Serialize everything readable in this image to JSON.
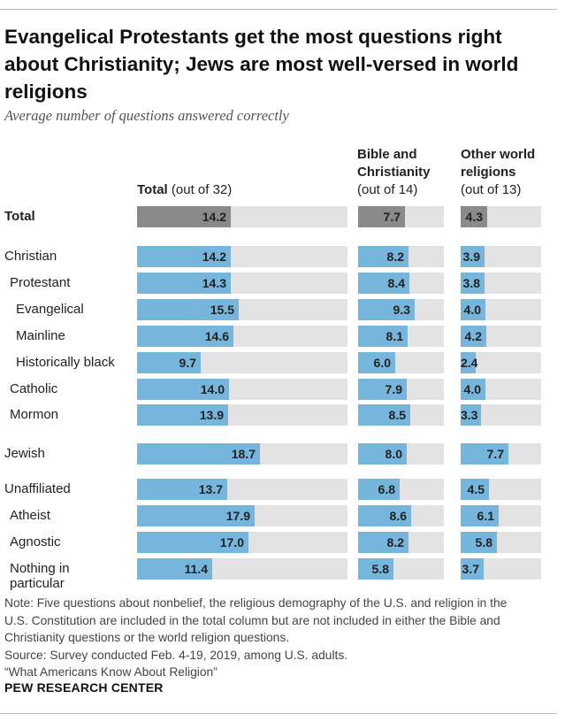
{
  "title": "Evangelical Protestants get the most questions right about Christianity; Jews are most well-versed in world religions",
  "subtitle": "Average number of questions answered correctly",
  "columns": [
    {
      "heading": "Total",
      "sub": "(out of 32)"
    },
    {
      "heading": "Bible and Christianity",
      "sub": "(out of 14)"
    },
    {
      "heading": "Other world religions",
      "sub": "(out of 13)"
    }
  ],
  "chart_data": {
    "type": "bar",
    "title": "Evangelical Protestants get the most questions right about Christianity; Jews are most well-versed in world religions",
    "subtitle": "Average number of questions answered correctly",
    "categories": [
      "Total",
      "Christian",
      "Protestant",
      "Evangelical",
      "Mainline",
      "Historically black",
      "Catholic",
      "Mormon",
      "Jewish",
      "Unaffiliated",
      "Atheist",
      "Agnostic",
      "Nothing in particular"
    ],
    "series": [
      {
        "name": "Total (out of 32)",
        "max": 32,
        "values": [
          14.2,
          14.2,
          14.3,
          15.5,
          14.6,
          9.7,
          14.0,
          13.9,
          18.7,
          13.7,
          17.9,
          17.0,
          11.4
        ]
      },
      {
        "name": "Bible and Christianity (out of 14)",
        "max": 14,
        "values": [
          7.7,
          8.2,
          8.4,
          9.3,
          8.1,
          6.0,
          7.9,
          8.5,
          8.0,
          6.8,
          8.6,
          8.2,
          5.8
        ]
      },
      {
        "name": "Other world religions (out of 13)",
        "max": 13,
        "values": [
          4.3,
          3.9,
          3.8,
          4.0,
          4.2,
          2.4,
          4.0,
          3.3,
          7.7,
          4.5,
          6.1,
          5.8,
          3.7
        ]
      }
    ],
    "value_labels": [
      [
        "14.2",
        "14.2",
        "14.3",
        "15.5",
        "14.6",
        "9.7",
        "14.0",
        "13.9",
        "18.7",
        "13.7",
        "17.9",
        "17.0",
        "11.4"
      ],
      [
        "7.7",
        "8.2",
        "8.4",
        "9.3",
        "8.1",
        "6.0",
        "7.9",
        "8.5",
        "8.0",
        "6.8",
        "8.6",
        "8.2",
        "5.8"
      ],
      [
        "4.3",
        "3.9",
        "3.8",
        "4.0",
        "4.2",
        "2.4",
        "4.0",
        "3.3",
        "7.7",
        "4.5",
        "6.1",
        "5.8",
        "3.7"
      ]
    ]
  },
  "notes": [
    "Note: Five questions about nonbelief, the religious demography of the U.S. and religion in the",
    "U.S. Constitution are included in the total column but are not included in either the Bible and",
    "Christianity questions or the world religion questions.",
    "Source: Survey conducted Feb. 4-19, 2019, among U.S. adults.",
    "“What Americans Know About Religion”"
  ],
  "source_org": "PEW RESEARCH CENTER",
  "colors": {
    "total_bar": "#8a8a8a",
    "group_bar": "#76b5dc",
    "track": "#e3e3e3"
  }
}
